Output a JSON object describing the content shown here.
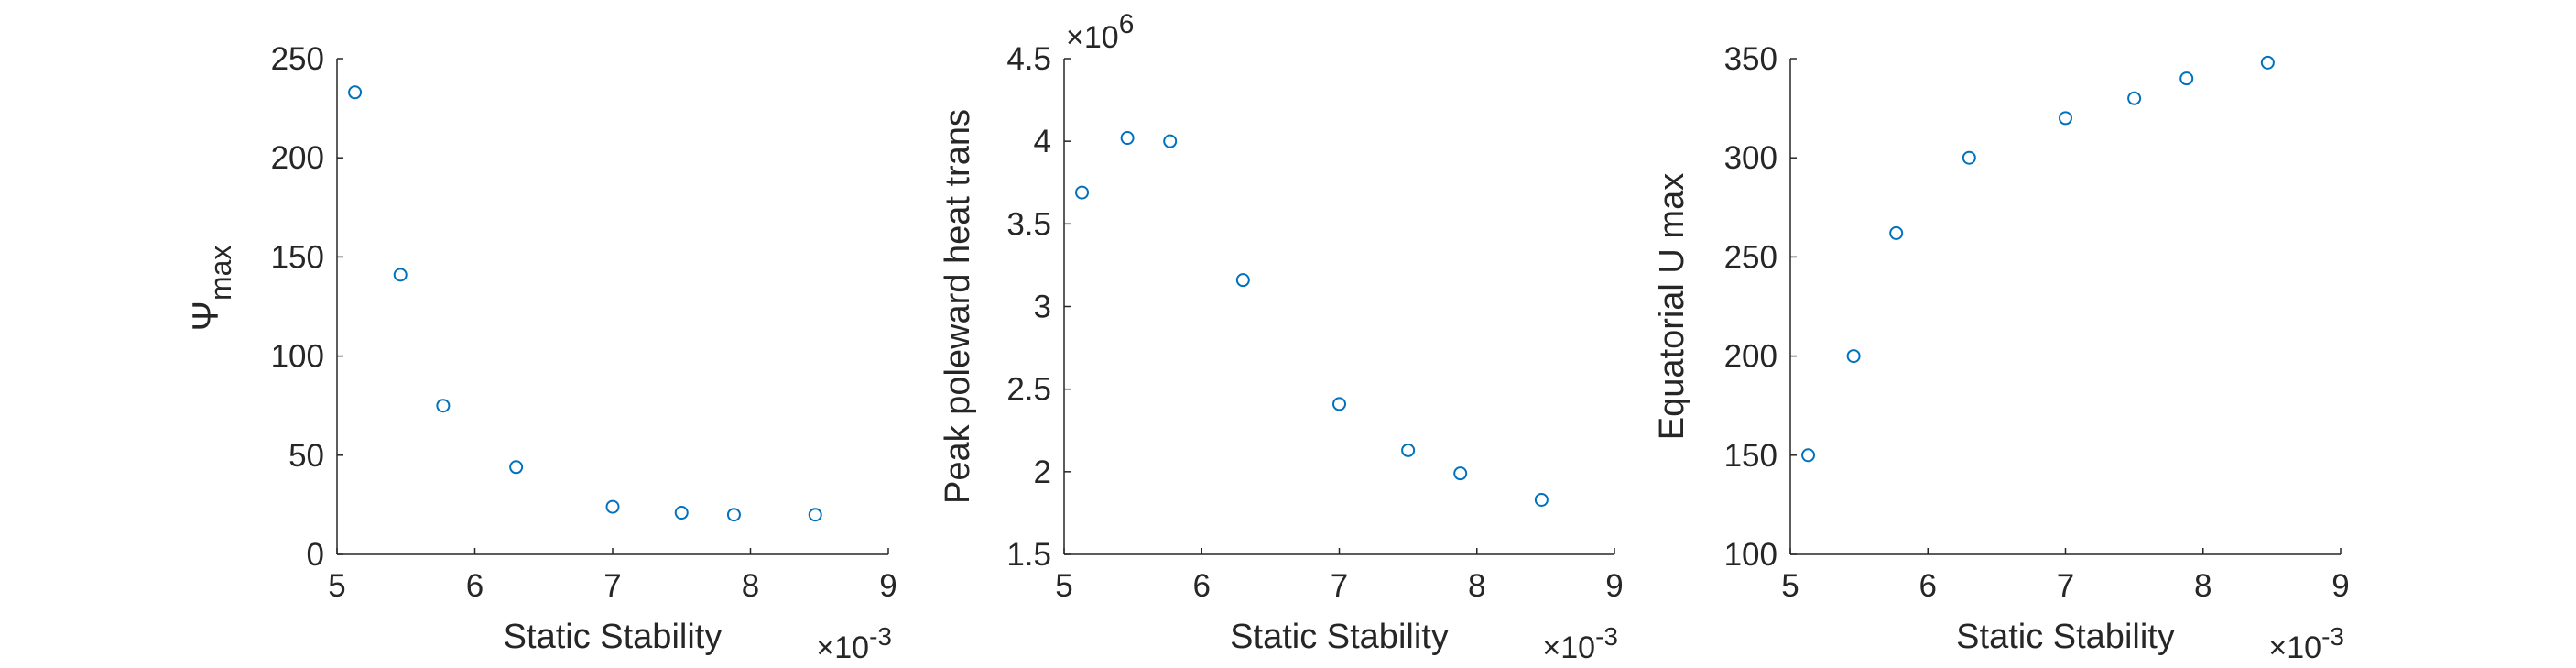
{
  "chart_data": [
    {
      "type": "scatter",
      "xlabel": "Static Stability",
      "ylabel": "Ψ",
      "ylabel_sub": "max",
      "x_multiplier": "×10",
      "x_multiplier_exp": "-3",
      "xlim": [
        5,
        9
      ],
      "ylim": [
        0,
        250
      ],
      "xticks": [
        "5",
        "6",
        "7",
        "8",
        "9"
      ],
      "yticks": [
        "0",
        "50",
        "100",
        "150",
        "200",
        "250"
      ],
      "marker_color": "#0072BD",
      "x": [
        5.13,
        5.46,
        5.77,
        6.3,
        7.0,
        7.5,
        7.88,
        8.47
      ],
      "y": [
        233,
        141,
        75,
        44,
        24,
        21,
        20,
        20
      ]
    },
    {
      "type": "scatter",
      "xlabel": "Static Stability",
      "ylabel": "Peak poleward heat trans",
      "y_multiplier": "×10",
      "y_multiplier_exp": "6",
      "x_multiplier": "×10",
      "x_multiplier_exp": "-3",
      "xlim": [
        5,
        9
      ],
      "ylim": [
        1.5,
        4.5
      ],
      "xticks": [
        "5",
        "6",
        "7",
        "8",
        "9"
      ],
      "yticks": [
        "1.5",
        "2",
        "2.5",
        "3",
        "3.5",
        "4",
        "4.5"
      ],
      "marker_color": "#0072BD",
      "x": [
        5.13,
        5.46,
        5.77,
        6.3,
        7.0,
        7.5,
        7.88,
        8.47
      ],
      "y": [
        3.69,
        4.02,
        4.0,
        3.16,
        2.41,
        2.13,
        1.99,
        1.83
      ]
    },
    {
      "type": "scatter",
      "xlabel": "Static Stability",
      "ylabel": "Equatorial U max",
      "x_multiplier": "×10",
      "x_multiplier_exp": "-3",
      "xlim": [
        5,
        9
      ],
      "ylim": [
        100,
        350
      ],
      "xticks": [
        "5",
        "6",
        "7",
        "8",
        "9"
      ],
      "yticks": [
        "100",
        "150",
        "200",
        "250",
        "300",
        "350"
      ],
      "marker_color": "#0072BD",
      "x": [
        5.13,
        5.46,
        5.77,
        6.3,
        7.0,
        7.5,
        7.88,
        8.47
      ],
      "y": [
        150,
        200,
        262,
        300,
        320,
        330,
        340,
        348
      ]
    }
  ]
}
